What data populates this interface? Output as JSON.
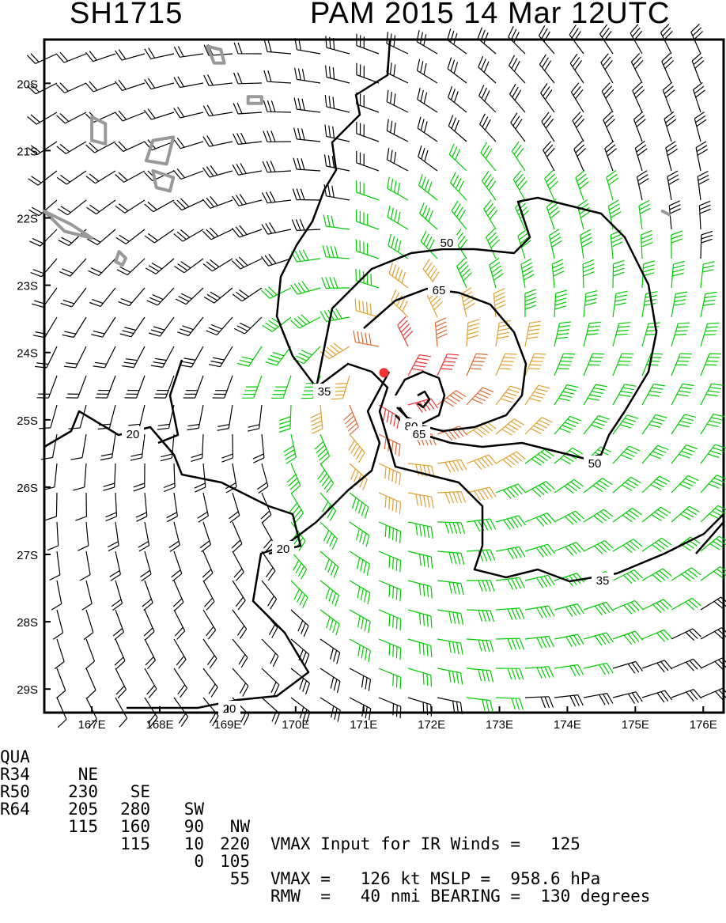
{
  "header": {
    "storm_id": "SH1715",
    "title": "PAM 2015 14 Mar 12UTC"
  },
  "map": {
    "lat_labels": [
      "20S",
      "21S",
      "22S",
      "23S",
      "24S",
      "25S",
      "26S",
      "27S",
      "28S",
      "29S"
    ],
    "lon_labels": [
      "167E",
      "168E",
      "169E",
      "170E",
      "171E",
      "172E",
      "173E",
      "174E",
      "175E",
      "176E"
    ],
    "contour_labels": [
      "20",
      "20",
      "20",
      "35",
      "35",
      "50",
      "50",
      "65",
      "80",
      "65"
    ],
    "storm_center": {
      "lat": -24.3,
      "lon": 171.3
    },
    "wind_colors": {
      "below_34kt": "#000000",
      "34_to_50kt": "#00cc00",
      "50_to_64kt": "#e0a030",
      "64_to_80kt": "#e06830",
      "above_80kt": "#ee3333",
      "center_marker": "#ee3333",
      "land_outline": "#999999"
    }
  },
  "footer": {
    "quadrant_header": {
      "label": "QUA",
      "ne": "NE",
      "se": "SE",
      "sw": "SW",
      "nw": "NW"
    },
    "rows": [
      {
        "label": "R34",
        "ne": "230",
        "se": "280",
        "sw": "90",
        "nw": "220"
      },
      {
        "label": "R50",
        "ne": "205",
        "se": "160",
        "sw": "10",
        "nw": "105"
      },
      {
        "label": "R64",
        "ne": "115",
        "se": "115",
        "sw": "0",
        "nw": "55"
      }
    ],
    "vmax_input_line": "VMAX Input for IR Winds =   125",
    "vmax_line": "VMAX =   126 kt MSLP =  958.6 hPa",
    "rmw_line": "RMW  =   40 nmi BEARING =  130 degrees"
  }
}
